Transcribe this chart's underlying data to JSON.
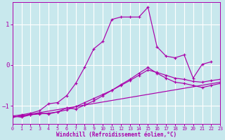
{
  "xlabel": "Windchill (Refroidissement éolien,°C)",
  "background_color": "#c8e8ed",
  "line_color": "#aa00aa",
  "grid_color": "#b8dde4",
  "xlim": [
    0,
    23
  ],
  "ylim": [
    -1.45,
    1.55
  ],
  "xticks": [
    0,
    1,
    2,
    3,
    4,
    5,
    6,
    7,
    8,
    9,
    10,
    11,
    12,
    13,
    14,
    15,
    16,
    17,
    18,
    19,
    20,
    21,
    22,
    23
  ],
  "yticks": [
    -1,
    0,
    1
  ],
  "series": [
    {
      "comment": "main curve - rises sharply then drops",
      "x": [
        0,
        1,
        2,
        3,
        4,
        5,
        6,
        7,
        8,
        9,
        10,
        11,
        12,
        13,
        14,
        15,
        16,
        17,
        18,
        19,
        20,
        21,
        22
      ],
      "y": [
        -1.25,
        -1.22,
        -1.18,
        -1.12,
        -0.95,
        -0.92,
        -0.75,
        -0.45,
        -0.05,
        0.4,
        0.58,
        1.12,
        1.18,
        1.18,
        1.18,
        1.42,
        0.45,
        0.22,
        0.18,
        0.25,
        -0.32,
        0.02,
        0.08
      ]
    },
    {
      "comment": "second curve - moderate rise",
      "x": [
        0,
        1,
        2,
        3,
        4,
        5,
        6,
        7,
        8,
        9,
        10,
        11,
        12,
        13,
        14,
        15,
        16,
        17,
        18,
        19,
        20,
        21,
        22,
        23
      ],
      "y": [
        -1.25,
        -1.28,
        -1.22,
        -1.18,
        -1.2,
        -1.15,
        -1.05,
        -1.08,
        -0.98,
        -0.88,
        -0.75,
        -0.62,
        -0.48,
        -0.35,
        -0.2,
        -0.06,
        -0.2,
        -0.32,
        -0.42,
        -0.45,
        -0.5,
        -0.55,
        -0.5,
        -0.45
      ]
    },
    {
      "comment": "third curve - slow rise nearly linear",
      "x": [
        0,
        1,
        2,
        3,
        4,
        5,
        6,
        7,
        8,
        9,
        10,
        11,
        12,
        13,
        14,
        15,
        16,
        17,
        18,
        19,
        20,
        21,
        22,
        23
      ],
      "y": [
        -1.28,
        -1.25,
        -1.22,
        -1.2,
        -1.18,
        -1.15,
        -1.1,
        -1.02,
        -0.92,
        -0.82,
        -0.72,
        -0.62,
        -0.5,
        -0.38,
        -0.25,
        -0.12,
        -0.18,
        -0.25,
        -0.32,
        -0.35,
        -0.4,
        -0.42,
        -0.38,
        -0.35
      ]
    },
    {
      "comment": "bottom line - nearly straight diagonal",
      "x": [
        0,
        23
      ],
      "y": [
        -1.28,
        -0.42
      ]
    }
  ]
}
